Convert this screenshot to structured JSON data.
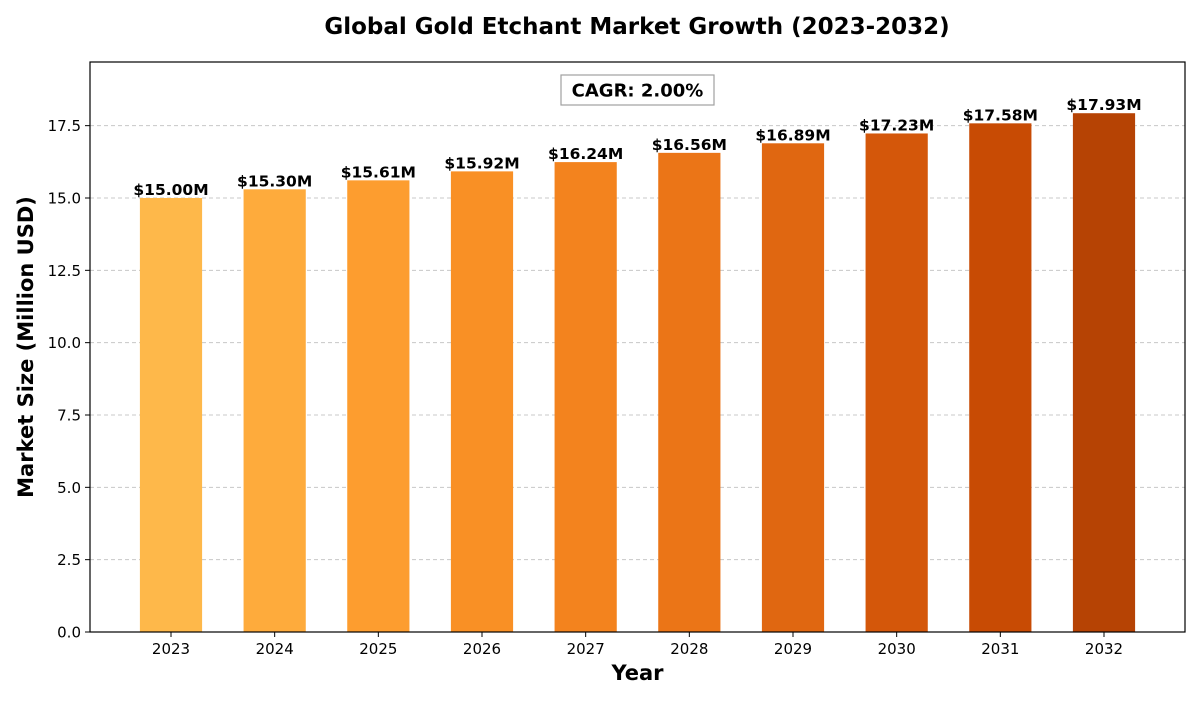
{
  "chart_data": {
    "type": "bar",
    "title": "Global Gold Etchant Market Growth (2023-2032)",
    "xlabel": "Year",
    "ylabel": "Market Size (Million USD)",
    "categories": [
      "2023",
      "2024",
      "2025",
      "2026",
      "2027",
      "2028",
      "2029",
      "2030",
      "2031",
      "2032"
    ],
    "values": [
      15.0,
      15.3,
      15.61,
      15.92,
      16.24,
      16.56,
      16.89,
      17.23,
      17.58,
      17.93
    ],
    "data_labels": [
      "$15.00M",
      "$15.30M",
      "$15.61M",
      "$15.92M",
      "$16.24M",
      "$16.56M",
      "$16.89M",
      "$17.23M",
      "$17.58M",
      "$17.93M"
    ],
    "bar_colors": [
      "#FEB84A",
      "#FEAB3C",
      "#FD9D2F",
      "#F99025",
      "#F3831E",
      "#EB7517",
      "#E06711",
      "#D4570A",
      "#C84B04",
      "#B64304"
    ],
    "ylim": [
      0,
      19.7
    ],
    "yticks": [
      0.0,
      2.5,
      5.0,
      7.5,
      10.0,
      12.5,
      15.0,
      17.5
    ],
    "ytick_labels": [
      "0.0",
      "2.5",
      "5.0",
      "7.5",
      "10.0",
      "12.5",
      "15.0",
      "17.5"
    ],
    "grid": "y-dashed",
    "annotation": "CAGR: 2.00%"
  }
}
